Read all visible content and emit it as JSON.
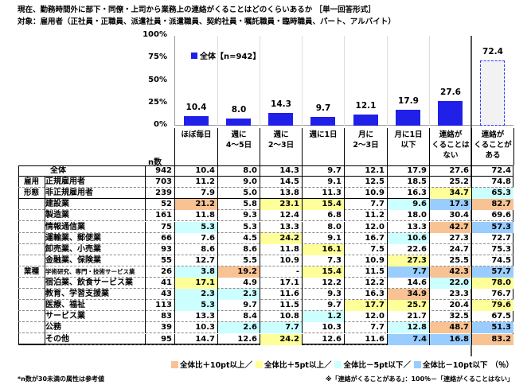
{
  "title": "現在、勤務時間外に部下・同僚・上司から業務上の連絡がくることはどのくらいあるか ［単一回答形式］",
  "subtitle": "対象：雇用者（正社員・正職員、派遣社員・派遣職員、契約社員・嘱託職員・臨時職員、パート、アルバイト）",
  "colors": {
    "bar": "#2020e8",
    "plus10": "#F9C293",
    "plus5": "#FFFF99",
    "minus5": "#CCFFFF",
    "minus10": "#99CCFF",
    "total_bar_fill": "#f2f2f2",
    "total_bar_border": "#3333ff"
  },
  "chart_data": {
    "type": "bar",
    "legend": "全体【n=942】",
    "legend_placement": "top-left",
    "ylim": [
      0,
      100
    ],
    "yticks": [
      "0%",
      "25%",
      "50%",
      "75%",
      "100%"
    ],
    "categories": [
      "ほぼ毎日",
      "週に\n4～5日",
      "週に\n2～3日",
      "週に1日",
      "月に\n2～3日",
      "月に1日\n以下",
      "連絡が\nくることは\nない",
      "連絡が\nくることが\nある"
    ],
    "values": [
      10.4,
      8.0,
      14.3,
      9.7,
      12.1,
      17.9,
      27.6,
      72.4
    ],
    "value_labels": [
      "10.4",
      "8.0",
      "14.3",
      "9.7",
      "12.1",
      "17.9",
      "27.6",
      "72.4"
    ]
  },
  "table": {
    "n_header": "n数",
    "groups": [
      {
        "label": "雇用\n形態"
      },
      {
        "label": "業種"
      }
    ],
    "rows": [
      {
        "label": "全体",
        "n": "942",
        "v": [
          "10.4",
          "8.0",
          "14.3",
          "9.7",
          "12.1",
          "17.9",
          "27.6",
          "72.4"
        ],
        "h": "--------"
      },
      {
        "label": "正規雇用者",
        "n": "703",
        "v": [
          "11.2",
          "9.0",
          "14.5",
          "9.1",
          "12.5",
          "18.5",
          "25.2",
          "74.8"
        ],
        "h": "--------"
      },
      {
        "label": "非正規雇用者",
        "n": "239",
        "v": [
          "7.9",
          "5.0",
          "13.8",
          "11.3",
          "10.9",
          "16.3",
          "34.7",
          "65.3"
        ],
        "h": "------yc"
      },
      {
        "label": "建設業",
        "n": "52",
        "v": [
          "21.2",
          "5.8",
          "23.1",
          "15.4",
          "7.7",
          "9.6",
          "17.3",
          "82.7"
        ],
        "h": "o-yy-cbo"
      },
      {
        "label": "製造業",
        "n": "161",
        "v": [
          "11.8",
          "9.3",
          "12.4",
          "6.8",
          "11.2",
          "18.0",
          "30.4",
          "69.6"
        ],
        "h": "--------"
      },
      {
        "label": "情報通信業",
        "n": "75",
        "v": [
          "5.3",
          "5.3",
          "13.3",
          "8.0",
          "12.0",
          "13.3",
          "42.7",
          "57.3"
        ],
        "h": "c-----ob"
      },
      {
        "label": "運輸業、郵便業",
        "n": "66",
        "v": [
          "7.6",
          "4.5",
          "24.2",
          "9.1",
          "16.7",
          "10.6",
          "27.3",
          "72.7"
        ],
        "h": "--y--c--"
      },
      {
        "label": "卸売業、小売業",
        "n": "93",
        "v": [
          "8.6",
          "8.6",
          "11.8",
          "16.1",
          "7.5",
          "22.6",
          "24.7",
          "75.3"
        ],
        "h": "---y----"
      },
      {
        "label": "金融業、保険業",
        "n": "55",
        "v": [
          "12.7",
          "5.5",
          "10.9",
          "7.3",
          "10.9",
          "27.3",
          "25.5",
          "74.5"
        ],
        "h": "-----y--"
      },
      {
        "label": "学術研究、専門・技術サービス業",
        "n": "26",
        "v": [
          "3.8",
          "19.2",
          "-",
          "15.4",
          "11.5",
          "7.7",
          "42.3",
          "57.7"
        ],
        "h": "co-y-bob",
        "small": true
      },
      {
        "label": "宿泊業、飲食サービス業",
        "n": "41",
        "v": [
          "17.1",
          "4.9",
          "17.1",
          "12.2",
          "12.2",
          "14.6",
          "22.0",
          "78.0"
        ],
        "h": "y-----cy"
      },
      {
        "label": "教育、学習支援業",
        "n": "43",
        "v": [
          "2.3",
          "2.3",
          "11.6",
          "9.3",
          "16.3",
          "34.9",
          "23.3",
          "76.7"
        ],
        "h": "cc---o--"
      },
      {
        "label": "医療、福祉",
        "n": "113",
        "v": [
          "5.3",
          "9.7",
          "11.5",
          "9.7",
          "17.7",
          "25.7",
          "20.4",
          "79.6"
        ],
        "h": "c---yy-y"
      },
      {
        "label": "サービス業",
        "n": "83",
        "v": [
          "13.3",
          "8.4",
          "10.8",
          "1.2",
          "12.0",
          "21.7",
          "32.5",
          "67.5"
        ],
        "h": "---c----"
      },
      {
        "label": "公務",
        "n": "39",
        "v": [
          "10.3",
          "2.6",
          "7.7",
          "10.3",
          "7.7",
          "12.8",
          "48.7",
          "51.3"
        ],
        "h": "-cc--cob"
      },
      {
        "label": "その他",
        "n": "95",
        "v": [
          "14.7",
          "12.6",
          "24.2",
          "12.6",
          "11.6",
          "7.4",
          "16.8",
          "83.2"
        ],
        "h": "--y--bbo"
      }
    ]
  },
  "keys": [
    {
      "label": "全体比＋10pt以上／",
      "color": "plus10"
    },
    {
      "label": "全体比＋5pt以上／",
      "color": "plus5"
    },
    {
      "label": "全体比－5pt以下／",
      "color": "minus5"
    },
    {
      "label": "全体比－10pt以下",
      "color": "minus10"
    }
  ],
  "unit": "（％）",
  "footnote_left": "*n数が30未満の属性は参考値",
  "footnote_right": "※「連絡がくることがある」：100％－「連絡がくることはない」"
}
